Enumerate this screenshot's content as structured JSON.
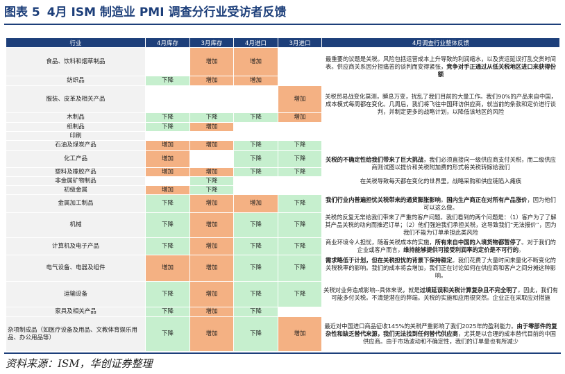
{
  "title": {
    "label": "图表 5",
    "text": "4月 ISM 制造业 PMI 调查分行业受访者反馈"
  },
  "columns": [
    "行业",
    "4月库存",
    "3月库存",
    "4月进口",
    "3月进口",
    "4月调查行业整体反馈"
  ],
  "rows": [
    {
      "industry": "食品、饮料和烟草制品",
      "c1": "",
      "c2": "增加",
      "c3": "增加",
      "c4": ""
    },
    {
      "industry": "纺织品",
      "c1": "下降",
      "c2": "增加",
      "c3": "增加",
      "c4": ""
    },
    {
      "industry": "服装、皮革及相关产品",
      "c1": "",
      "c2": "",
      "c3": "",
      "c4": "增加"
    },
    {
      "industry": "木制品",
      "c1": "下降",
      "c2": "下降",
      "c3": "下降",
      "c4": "增加"
    },
    {
      "industry": "纸制品",
      "c1": "下降",
      "c2": "增加",
      "c3": "",
      "c4": ""
    },
    {
      "industry": "印刷",
      "c1": "",
      "c2": "",
      "c3": "",
      "c4": ""
    },
    {
      "industry": "石油及煤炭产品",
      "c1": "增加",
      "c2": "增加",
      "c3": "下降",
      "c4": "下降"
    },
    {
      "industry": "化工产品",
      "c1": "增加",
      "c2": "",
      "c3": "下降",
      "c4": "下降"
    },
    {
      "industry": "塑料及橡胶产品",
      "c1": "增加",
      "c2": "增加",
      "c3": "下降",
      "c4": "下降"
    },
    {
      "industry": "非金属矿物制品",
      "c1": "",
      "c2": "下降",
      "c3": "",
      "c4": ""
    },
    {
      "industry": "初级金属",
      "c1": "增加",
      "c2": "下降",
      "c3": "",
      "c4": ""
    },
    {
      "industry": "金属加工制品",
      "c1": "下降",
      "c2": "增加",
      "c3": "增加",
      "c4": "下降"
    },
    {
      "industry": "机械",
      "c1": "下降",
      "c2": "增加",
      "c3": "下降",
      "c4": "下降"
    },
    {
      "industry": "计算机及电子产品",
      "c1": "下降",
      "c2": "增加",
      "c3": "下降",
      "c4": "下降"
    },
    {
      "industry": "电气设备、电器及组件",
      "c1": "增加",
      "c2": "增加",
      "c3": "下降",
      "c4": "下降"
    },
    {
      "industry": "运输设备",
      "c1": "下降",
      "c2": "增加",
      "c3": "下降",
      "c4": "下降"
    },
    {
      "industry": "家具及相关产品",
      "c1": "下降",
      "c2": "增加",
      "c3": "下降",
      "c4": ""
    },
    {
      "industry": "杂项制成品（如医疗设备及用品、文教体育娱乐用品、办公用品等）",
      "c1": "下降",
      "c2": "增加",
      "c3": "下降",
      "c4": "增加"
    }
  ],
  "feedback": {
    "f1_a": "最重要的议题是关税。风险包括运营成本上升导致的利润缩水，以及货运延误打乱交货时间表。供应商关系因分担痛苦的谈判而变得紧张，",
    "f1_b": "竞争对手正通过从低关税地区进口来获得份额",
    "f2": "关税贸易战变化莫测，瞬息万变，扰乱了我们目前的大量工作。我们90%的产品来自中国，成本模式每周都在变化。几周后，我们将飞往中国拜访供应商，就当前的条款和定价进行谈判，并制定更多的战略计划，以降低该地区的风险",
    "f3_a": "关税的不确定性给我们带来了巨大挑战",
    "f3_b": "，我们必须直接向一级供应商支付关税，而二级供应商则试图以提价和关税附加费的形式将关税转嫁给我们",
    "f4": "在关税导致每天都在变化的世界里，战略采购和供应链陷入瘫痪",
    "f5_a": "我们行业内普遍担忧关税带来的通货膨胀影响",
    "f5_b": "。",
    "f5_c": "国内生产商正在对所有产品涨价",
    "f5_d": "，因为他们可以这么做。",
    "f6": "关税的反复无常给我们带来了严重的客户问题。我们看到的两个问题是：（1）客户为了了解其产品关税的动向而推迟订单；（2）他们强迫我们承担关税，这导致我们“无法报价”，因为我们不能为订单承担此类风险",
    "f7_a": "商业环境令人担忧，随着关税成本的实施，",
    "f7_b": "所有来自中国的入境货物都暂停了",
    "f7_c": "。对于我们的企业或客户而言，",
    "f7_d": "维持能够提供可接受利润率的定价是不可行的",
    "f7_e": "。",
    "f8_a": "需求略低于计划，但在关税担忧的背景下保持稳定",
    "f8_b": "。我们花费了大量时间来量化不断变化的关税税率的影响。我们的成本将会增加，我们正在讨论如何在供应商和客户之间分摊这种影响。",
    "f9_a": "关税对业务造成影响--具体来说，就是",
    "f9_b": "过境延误和关税计算复杂且不完全明了",
    "f9_c": "。因此，我们有可能多付关税。不清楚潜在的弊端。关税的实施和应用很突然。企业正在采取应对措施",
    "f10_a": "最近对中国进口商品征收145%的关税严重影响了我们2025年的盈利能力。",
    "f10_b": "由于零部件的复杂性和缺乏替代来源，我们无法找到任何替代供应商",
    "f10_c": "，尤其是以合理的成本替代目前的中国供应商。由于市场波动和不确定性，我们的订单量也有所减少"
  },
  "source": "资料来源：ISM，华创证券整理",
  "colors": {
    "up": "#f4b183",
    "down": "#c6efce",
    "header": "#1d3f7a",
    "category": "#f2f2f2"
  }
}
